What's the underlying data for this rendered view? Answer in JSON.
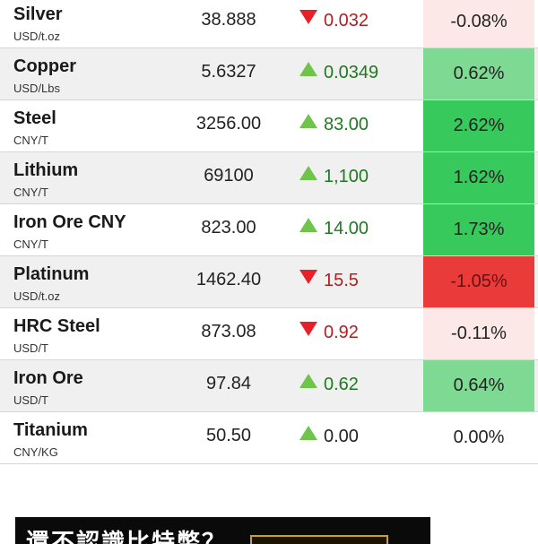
{
  "rows": [
    {
      "name": "Silver",
      "unit": "USD/t.oz",
      "price": "38.888",
      "direction": "down",
      "change": "0.032",
      "pct": "-0.08%",
      "pct_style": "light-red"
    },
    {
      "name": "Copper",
      "unit": "USD/Lbs",
      "price": "5.6327",
      "direction": "up",
      "change": "0.0349",
      "pct": "0.62%",
      "pct_style": "light-green"
    },
    {
      "name": "Steel",
      "unit": "CNY/T",
      "price": "3256.00",
      "direction": "up",
      "change": "83.00",
      "pct": "2.62%",
      "pct_style": "green"
    },
    {
      "name": "Lithium",
      "unit": "CNY/T",
      "price": "69100",
      "direction": "up",
      "change": "1,100",
      "pct": "1.62%",
      "pct_style": "green"
    },
    {
      "name": "Iron Ore CNY",
      "unit": "CNY/T",
      "price": "823.00",
      "direction": "up",
      "change": "14.00",
      "pct": "1.73%",
      "pct_style": "green"
    },
    {
      "name": "Platinum",
      "unit": "USD/t.oz",
      "price": "1462.40",
      "direction": "down",
      "change": "15.5",
      "pct": "-1.05%",
      "pct_style": "red"
    },
    {
      "name": "HRC Steel",
      "unit": "USD/T",
      "price": "873.08",
      "direction": "down",
      "change": "0.92",
      "pct": "-0.11%",
      "pct_style": "light-red"
    },
    {
      "name": "Iron Ore",
      "unit": "USD/T",
      "price": "97.84",
      "direction": "up",
      "change": "0.62",
      "pct": "0.64%",
      "pct_style": "light-green"
    },
    {
      "name": "Titanium",
      "unit": "CNY/KG",
      "price": "50.50",
      "direction": "up",
      "change": "0.00",
      "pct": "0.00%",
      "pct_style": "none"
    }
  ],
  "icons": {
    "up": "triangle-up-icon",
    "down": "triangle-down-icon"
  },
  "colors": {
    "up_arrow": "#6fc44a",
    "down_arrow": "#e8202a",
    "pct_green": "#38c95c",
    "pct_light_green": "#7ed992",
    "pct_red": "#ea3b3b",
    "pct_light_red": "#fde8e8"
  },
  "banner": {
    "text": "還不認識比特幣？"
  }
}
